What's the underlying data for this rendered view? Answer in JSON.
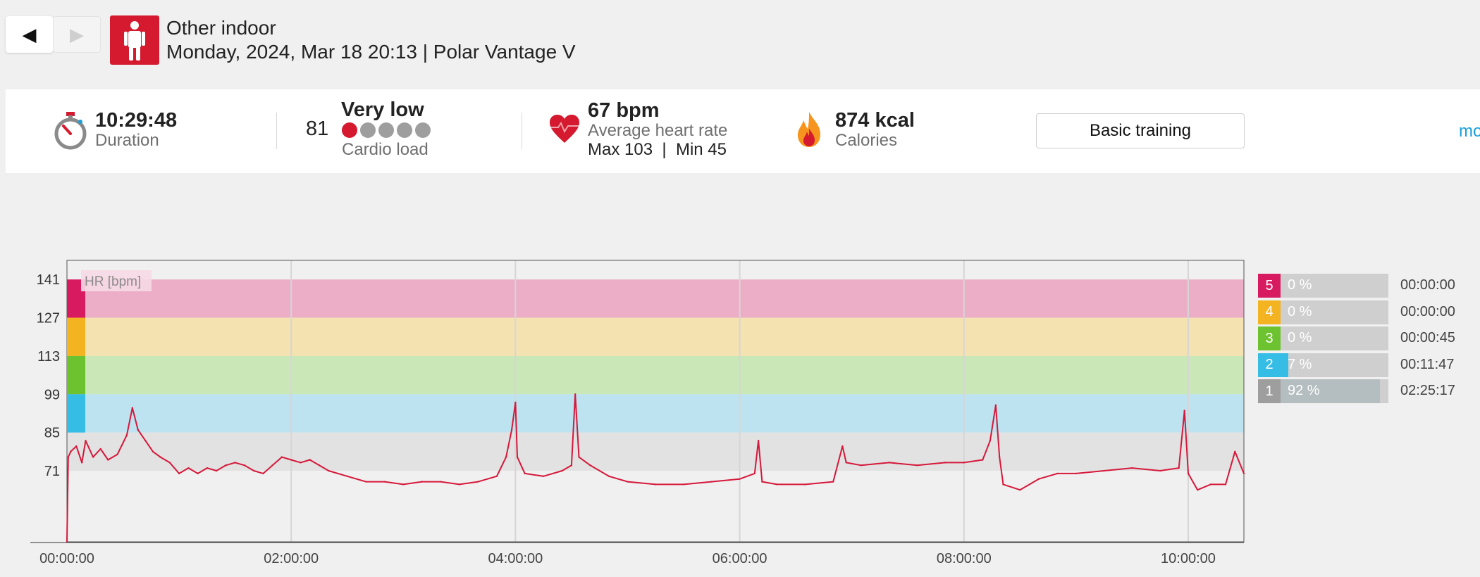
{
  "header": {
    "prev_icon": "◀",
    "next_icon": "▶",
    "sport_icon": "person-standing-icon",
    "sport_name": "Other indoor",
    "session_info": "Monday, 2024, Mar 18 20:13 | Polar Vantage V"
  },
  "summary": {
    "duration": {
      "icon": "stopwatch-icon",
      "value": "10:29:48",
      "label": "Duration"
    },
    "cardio_load": {
      "value": "81",
      "level": "Very low",
      "level_dots": 1,
      "label": "Cardio load"
    },
    "heart_rate": {
      "icon": "heart-icon",
      "value": "67 bpm",
      "label": "Average heart rate",
      "minmax": "Max 103  |  Min 45"
    },
    "calories": {
      "icon": "flame-icon",
      "value": "874 kcal",
      "label": "Calories"
    },
    "training_button": "Basic training",
    "more_link": "mo"
  },
  "chart_data": {
    "type": "line",
    "legend_label": "HR [bpm]",
    "ylim": [
      45,
      148
    ],
    "y_ticks": [
      141,
      127,
      113,
      99,
      85,
      71
    ],
    "x_max_seconds": 37788,
    "x_ticks": [
      "00:00:00",
      "02:00:00",
      "04:00:00",
      "06:00:00",
      "08:00:00",
      "10:00:00"
    ],
    "zone_bands": [
      {
        "zone": 5,
        "from": 127,
        "to": 141,
        "color": "#ecadc7"
      },
      {
        "zone": 4,
        "from": 113,
        "to": 127,
        "color": "#f5e2b1"
      },
      {
        "zone": 3,
        "from": 99,
        "to": 113,
        "color": "#c9e7b7"
      },
      {
        "zone": 2,
        "from": 85,
        "to": 99,
        "color": "#bde3f0"
      },
      {
        "zone": 1,
        "from": 71,
        "to": 85,
        "color": "#e2e2e2"
      }
    ],
    "series": [
      {
        "color": "#d6183a",
        "points": [
          [
            "00:00:00",
            45
          ],
          [
            "00:00:40",
            76
          ],
          [
            "00:02:00",
            78
          ],
          [
            "00:05:00",
            80
          ],
          [
            "00:08:00",
            74
          ],
          [
            "00:10:00",
            82
          ],
          [
            "00:14:00",
            76
          ],
          [
            "00:18:00",
            79
          ],
          [
            "00:22:00",
            75
          ],
          [
            "00:27:00",
            77
          ],
          [
            "00:32:00",
            84
          ],
          [
            "00:35:00",
            94
          ],
          [
            "00:38:00",
            86
          ],
          [
            "00:42:00",
            82
          ],
          [
            "00:46:00",
            78
          ],
          [
            "00:50:00",
            76
          ],
          [
            "00:55:00",
            74
          ],
          [
            "01:00:00",
            70
          ],
          [
            "01:05:00",
            72
          ],
          [
            "01:10:00",
            70
          ],
          [
            "01:15:00",
            72
          ],
          [
            "01:20:00",
            71
          ],
          [
            "01:25:00",
            73
          ],
          [
            "01:30:00",
            74
          ],
          [
            "01:35:00",
            73
          ],
          [
            "01:40:00",
            71
          ],
          [
            "01:45:00",
            70
          ],
          [
            "01:50:00",
            73
          ],
          [
            "01:55:00",
            76
          ],
          [
            "02:00:00",
            75
          ],
          [
            "02:05:00",
            74
          ],
          [
            "02:10:00",
            75
          ],
          [
            "02:15:00",
            73
          ],
          [
            "02:20:00",
            71
          ],
          [
            "02:30:00",
            69
          ],
          [
            "02:40:00",
            67
          ],
          [
            "02:50:00",
            67
          ],
          [
            "03:00:00",
            66
          ],
          [
            "03:10:00",
            67
          ],
          [
            "03:20:00",
            67
          ],
          [
            "03:30:00",
            66
          ],
          [
            "03:40:00",
            67
          ],
          [
            "03:50:00",
            69
          ],
          [
            "03:55:00",
            76
          ],
          [
            "03:58:00",
            86
          ],
          [
            "04:00:00",
            96
          ],
          [
            "04:01:00",
            76
          ],
          [
            "04:05:00",
            70
          ],
          [
            "04:15:00",
            69
          ],
          [
            "04:25:00",
            71
          ],
          [
            "04:30:00",
            73
          ],
          [
            "04:32:00",
            99
          ],
          [
            "04:34:00",
            76
          ],
          [
            "04:40:00",
            73
          ],
          [
            "04:50:00",
            69
          ],
          [
            "05:00:00",
            67
          ],
          [
            "05:15:00",
            66
          ],
          [
            "05:30:00",
            66
          ],
          [
            "05:45:00",
            67
          ],
          [
            "06:00:00",
            68
          ],
          [
            "06:08:00",
            70
          ],
          [
            "06:10:00",
            82
          ],
          [
            "06:12:00",
            67
          ],
          [
            "06:20:00",
            66
          ],
          [
            "06:35:00",
            66
          ],
          [
            "06:50:00",
            67
          ],
          [
            "06:55:00",
            80
          ],
          [
            "06:57:00",
            74
          ],
          [
            "07:05:00",
            73
          ],
          [
            "07:20:00",
            74
          ],
          [
            "07:35:00",
            73
          ],
          [
            "07:50:00",
            74
          ],
          [
            "08:00:00",
            74
          ],
          [
            "08:10:00",
            75
          ],
          [
            "08:14:00",
            82
          ],
          [
            "08:17:00",
            95
          ],
          [
            "08:19:00",
            76
          ],
          [
            "08:21:00",
            66
          ],
          [
            "08:30:00",
            64
          ],
          [
            "08:40:00",
            68
          ],
          [
            "08:50:00",
            70
          ],
          [
            "09:00:00",
            70
          ],
          [
            "09:15:00",
            71
          ],
          [
            "09:30:00",
            72
          ],
          [
            "09:45:00",
            71
          ],
          [
            "09:55:00",
            72
          ],
          [
            "09:58:00",
            93
          ],
          [
            "10:00:00",
            70
          ],
          [
            "10:05:00",
            64
          ],
          [
            "10:12:00",
            66
          ],
          [
            "10:20:00",
            66
          ],
          [
            "10:25:00",
            78
          ],
          [
            "10:29:48",
            70
          ]
        ]
      }
    ]
  },
  "zones": [
    {
      "num": "5",
      "pct_label": "0 %",
      "fraction": 0.0,
      "time": "00:00:00",
      "color": "#d81b60",
      "fill": "#d81b60"
    },
    {
      "num": "4",
      "pct_label": "0 %",
      "fraction": 0.0,
      "time": "00:00:00",
      "color": "#f4b321",
      "fill": "#f4b321"
    },
    {
      "num": "3",
      "pct_label": "0 %",
      "fraction": 0.0,
      "time": "00:00:45",
      "color": "#6cc22f",
      "fill": "#6cc22f"
    },
    {
      "num": "2",
      "pct_label": "7 %",
      "fraction": 0.07,
      "time": "00:11:47",
      "color": "#36bde6",
      "fill": "#36bde6"
    },
    {
      "num": "1",
      "pct_label": "92 %",
      "fraction": 0.92,
      "time": "02:25:17",
      "color": "#9e9e9e",
      "fill": "#b4bdbf"
    }
  ]
}
